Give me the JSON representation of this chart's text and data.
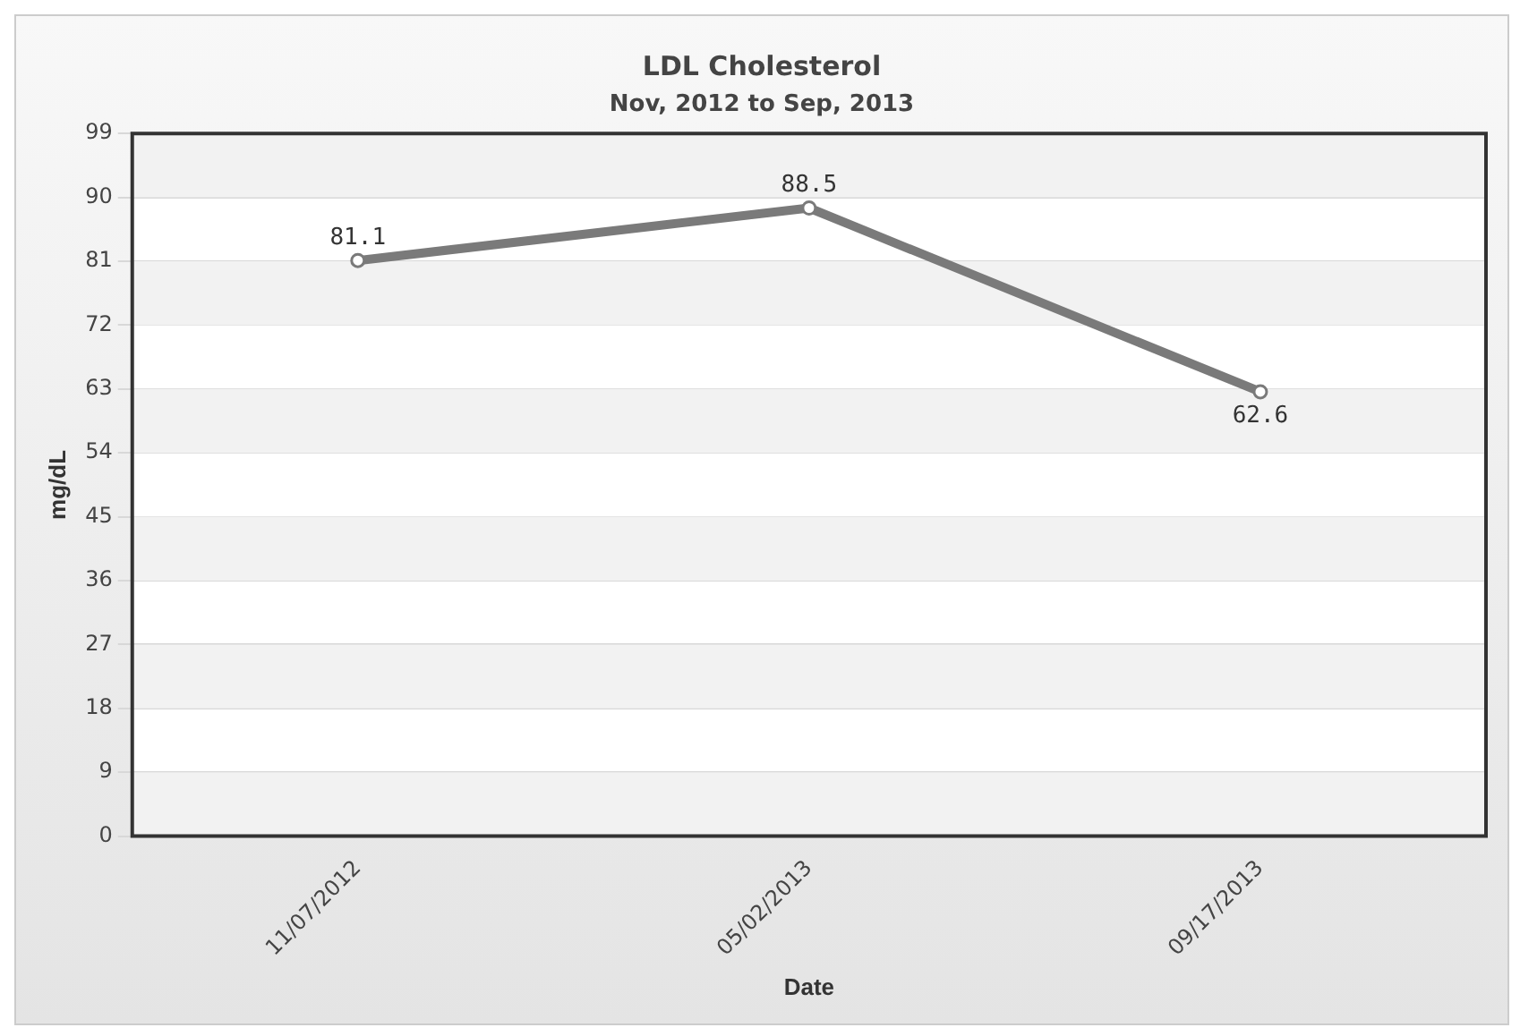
{
  "chart_data": {
    "type": "line",
    "title": "LDL Cholesterol",
    "subtitle": "Nov, 2012 to Sep, 2013",
    "xlabel": "Date",
    "ylabel": "mg/dL",
    "categories": [
      "11/07/2012",
      "05/02/2013",
      "09/17/2013"
    ],
    "series": [
      {
        "color": "#7a7a7a",
        "values": [
          81.1,
          88.5,
          62.6
        ]
      }
    ],
    "ylim": [
      0,
      99
    ],
    "yticks": [
      0,
      9,
      18,
      27,
      36,
      45,
      54,
      63,
      72,
      81,
      90,
      99
    ],
    "grid": "y",
    "legend": false,
    "marker": "circle",
    "line_style": "solid",
    "data_labels": true
  }
}
